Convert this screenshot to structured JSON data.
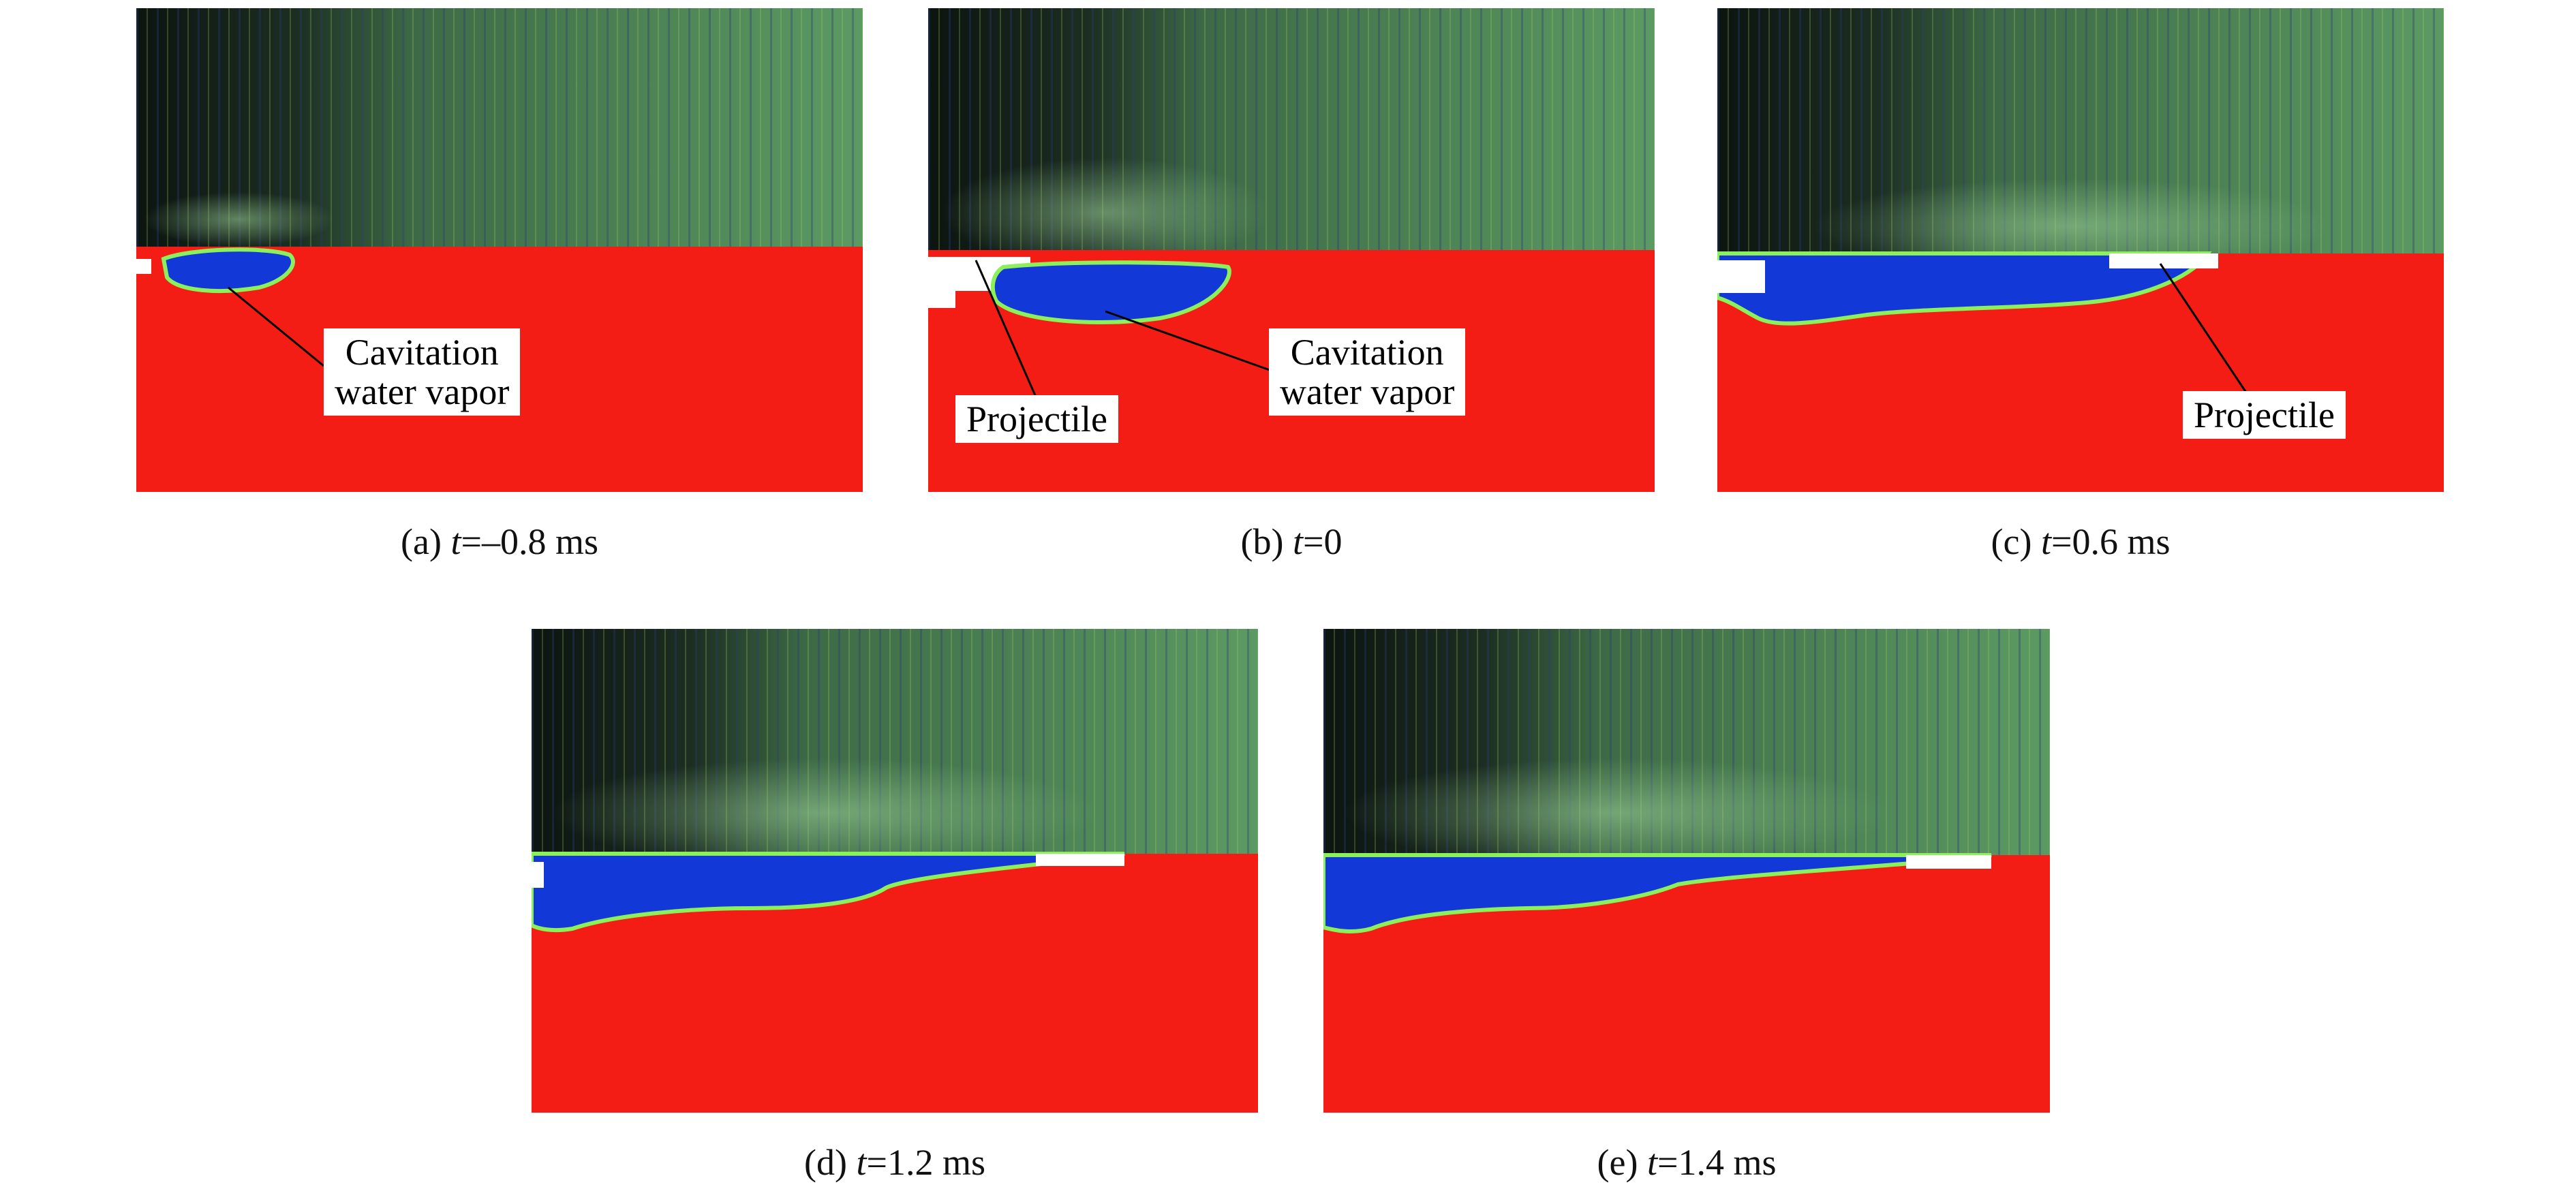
{
  "figure": {
    "panels": [
      {
        "id": "a",
        "caption_prefix": "(a) ",
        "caption_var": "t",
        "caption_rest": "=–0.8 ms",
        "labels": [
          "Cavitation\nwater vapor"
        ]
      },
      {
        "id": "b",
        "caption_prefix": "(b) ",
        "caption_var": "t",
        "caption_rest": "=0",
        "labels": [
          "Projectile",
          "Cavitation\nwater vapor"
        ]
      },
      {
        "id": "c",
        "caption_prefix": "(c) ",
        "caption_var": "t",
        "caption_rest": "=0.6 ms",
        "labels": [
          "Projectile"
        ]
      },
      {
        "id": "d",
        "caption_prefix": "(d) ",
        "caption_var": "t",
        "caption_rest": "=1.2 ms",
        "labels": []
      },
      {
        "id": "e",
        "caption_prefix": "(e) ",
        "caption_var": "t",
        "caption_rest": "=1.4 ms",
        "labels": []
      }
    ]
  },
  "colors": {
    "water": "#f31d15",
    "vapor": "#1238d8",
    "interface": "#8bf05a",
    "photo_dark": "#0f1a14",
    "photo_green": "#5f9e63"
  }
}
